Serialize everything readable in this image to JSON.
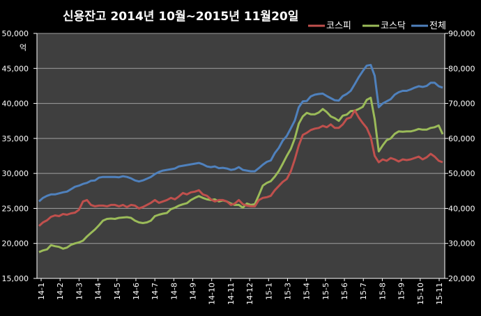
{
  "chart_data": {
    "type": "line",
    "title": "신용잔고  2014년 10월~2015년 11월20일",
    "ylabel_left_unit": "억",
    "y_left": {
      "min": 15000,
      "max": 50000,
      "step": 5000,
      "tick_labels": [
        "15,000",
        "20,000",
        "25,000",
        "30,000",
        "35,000",
        "40,000",
        "45,000",
        "50,000"
      ]
    },
    "y_right": {
      "min": 20000,
      "max": 90000,
      "step": 10000,
      "tick_labels": [
        "20,000",
        "30,000",
        "40,000",
        "50,000",
        "60,000",
        "70,000",
        "80,000",
        "90,000"
      ]
    },
    "x_tick_labels": [
      "14-1",
      "14-2",
      "14-3",
      "14-4",
      "14-5",
      "14-6",
      "14-7",
      "14-8",
      "14-9",
      "14-10",
      "14-11",
      "14-12",
      "15-1",
      "15-3",
      "15-4",
      "15-5",
      "15-6",
      "15-7",
      "15-8",
      "15-9",
      "15-10",
      "15-11"
    ],
    "grid": true,
    "legend_position": "top-right",
    "colors": {
      "background": "#000000",
      "plot_background": "#3f3f3f",
      "grid": "#a0a0a0",
      "kospi": "#c0504d",
      "kosdaq": "#9bbb59",
      "total": "#4f81bd",
      "text": "#ffffff"
    },
    "series": [
      {
        "name": "코스피",
        "axis": "left",
        "color": "#c0504d",
        "values": [
          22500,
          23000,
          23300,
          23800,
          24000,
          23900,
          24200,
          24100,
          24300,
          24400,
          24800,
          26000,
          26200,
          25500,
          25300,
          25400,
          25400,
          25300,
          25500,
          25500,
          25300,
          25500,
          25200,
          25500,
          25400,
          25000,
          25200,
          25500,
          25800,
          26200,
          25800,
          26000,
          26200,
          26500,
          26300,
          26700,
          27200,
          27000,
          27300,
          27400,
          27600,
          27000,
          26800,
          26300,
          26000,
          26200,
          26200,
          26000,
          25500,
          25700,
          26200,
          25600,
          25400,
          25300,
          25300,
          26200,
          26500,
          26600,
          26800,
          27600,
          28200,
          28800,
          29200,
          30300,
          32000,
          34000,
          35500,
          35800,
          36200,
          36400,
          36500,
          36800,
          36600,
          37000,
          36500,
          36500,
          37000,
          37800,
          38000,
          39000,
          38000,
          37200,
          36500,
          35200,
          32500,
          31600,
          32000,
          31800,
          32200,
          32000,
          31700,
          32000,
          31900,
          32000,
          32200,
          32400,
          32000,
          32300,
          32800,
          32400,
          31800,
          31600
        ]
      },
      {
        "name": "코스닥",
        "axis": "right",
        "color": "#9bbb59",
        "values": [
          27500,
          28000,
          28300,
          29500,
          29200,
          29000,
          28500,
          28800,
          29600,
          30000,
          30300,
          30800,
          32000,
          33000,
          34000,
          35200,
          36500,
          37000,
          37100,
          37000,
          37300,
          37400,
          37500,
          37300,
          36500,
          36000,
          35800,
          36000,
          36500,
          37800,
          38200,
          38500,
          38700,
          39800,
          40200,
          40800,
          41200,
          41500,
          42400,
          43000,
          43500,
          43000,
          42600,
          42400,
          42600,
          42000,
          42300,
          42000,
          41400,
          41000,
          41000,
          40200,
          41400,
          41000,
          41200,
          43800,
          46500,
          47300,
          47800,
          49100,
          50700,
          52800,
          55000,
          57000,
          60000,
          64200,
          66300,
          67300,
          66900,
          66900,
          67400,
          68400,
          67500,
          66300,
          65800,
          65000,
          66500,
          66800,
          67800,
          67900,
          68400,
          69000,
          71000,
          71600,
          65500,
          56300,
          58000,
          59500,
          60000,
          61300,
          62000,
          61900,
          62000,
          62000,
          62300,
          62700,
          62500,
          62500,
          63000,
          63200,
          63700,
          61200
        ]
      },
      {
        "name": "전체",
        "axis": "right",
        "color": "#4f81bd",
        "values": [
          42000,
          43000,
          43600,
          44000,
          44000,
          44300,
          44600,
          44800,
          45500,
          46200,
          46500,
          47000,
          47300,
          47900,
          48000,
          48800,
          49000,
          49000,
          49000,
          49000,
          48900,
          49200,
          49000,
          48600,
          48000,
          47700,
          48000,
          48500,
          49000,
          49800,
          50400,
          50800,
          51000,
          51200,
          51400,
          52000,
          52200,
          52400,
          52600,
          52800,
          53000,
          52600,
          52000,
          51800,
          52000,
          51500,
          51600,
          51400,
          51000,
          51200,
          51800,
          51000,
          50800,
          50600,
          50600,
          51500,
          52500,
          53300,
          53700,
          55800,
          57300,
          59400,
          60700,
          62900,
          65100,
          68900,
          70600,
          70700,
          72000,
          72500,
          72700,
          72800,
          72100,
          71500,
          70900,
          70800,
          72100,
          72700,
          73600,
          75500,
          77500,
          79200,
          80800,
          81000,
          77900,
          68900,
          70000,
          70600,
          71200,
          72500,
          73200,
          73600,
          73600,
          74000,
          74500,
          74900,
          74700,
          75000,
          75900,
          75900,
          74900,
          74500
        ]
      }
    ]
  }
}
